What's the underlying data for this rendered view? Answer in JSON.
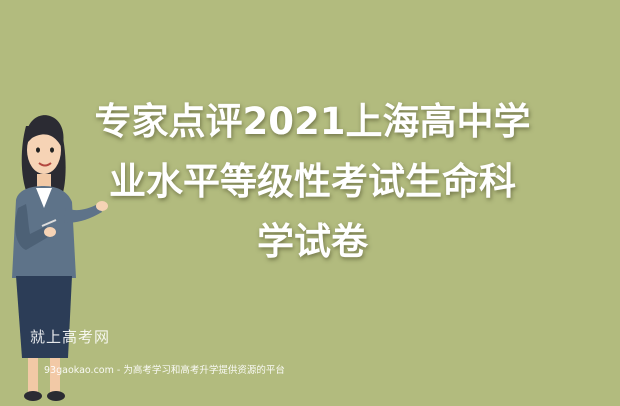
{
  "background_color": "#b2bb7e",
  "title_lines": [
    "专家点评2021上海高中学",
    "业水平等级性考试生命科",
    "学试卷"
  ],
  "watermark": {
    "site_name": "就上高考网",
    "tagline": "93gaokao.com - 为高考学习和高考升学提供资源的平台"
  },
  "illustration": {
    "icon": "presenter-woman-illustration"
  }
}
